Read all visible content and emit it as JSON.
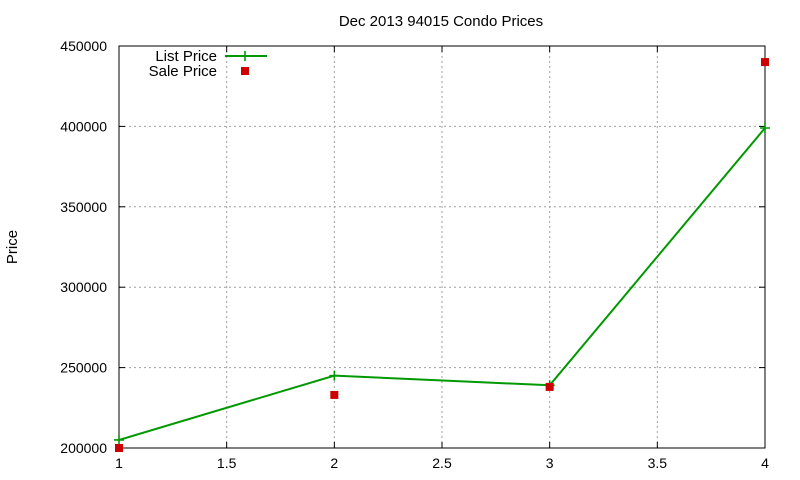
{
  "chart_data": {
    "type": "line",
    "title": "Dec 2013 94015 Condo Prices",
    "xlabel": "",
    "ylabel": "Price",
    "xlim": [
      1,
      4
    ],
    "ylim": [
      200000,
      450000
    ],
    "x_ticks": [
      1,
      1.5,
      2,
      2.5,
      3,
      3.5,
      4
    ],
    "y_ticks": [
      200000,
      250000,
      300000,
      350000,
      400000,
      450000
    ],
    "grid": true,
    "legend_position": "top-left",
    "series": [
      {
        "name": "List Price",
        "style": "line-with-plus-markers",
        "color": "#009900",
        "x": [
          1,
          2,
          3,
          4
        ],
        "y": [
          205000,
          245000,
          239000,
          399000
        ]
      },
      {
        "name": "Sale Price",
        "style": "square-markers",
        "color": "#cc0000",
        "x": [
          1,
          2,
          3,
          4
        ],
        "y": [
          200000,
          233000,
          238000,
          440000
        ]
      }
    ]
  }
}
